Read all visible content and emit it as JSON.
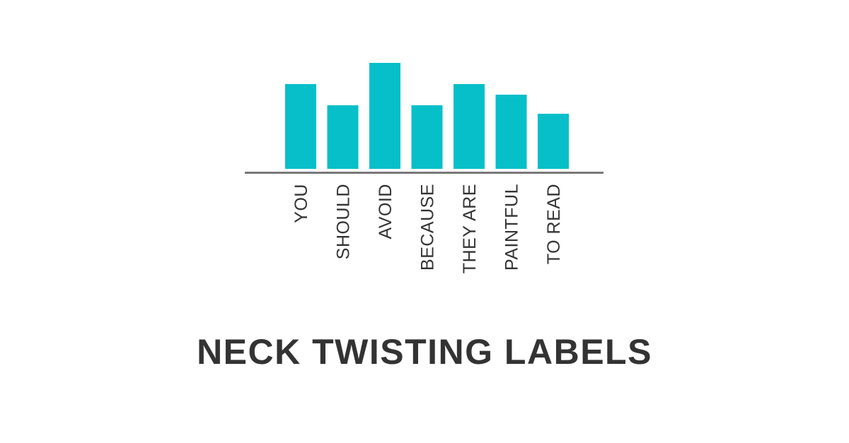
{
  "chart_data": {
    "type": "bar",
    "categories": [
      "YOU",
      "SHOULD",
      "AVOID",
      "BECAUSE",
      "THEY ARE",
      "PAINTFUL",
      "TO READ"
    ],
    "values": [
      40,
      30,
      50,
      30,
      40,
      35,
      26
    ],
    "ylim": [
      0,
      50
    ],
    "bar_color": "#06BFC8",
    "axis_color": "#777777",
    "label_color": "#333333",
    "label_orientation": "vertical",
    "grid": false,
    "legend": "none"
  },
  "headline": "NECK TWISTING LABELS"
}
